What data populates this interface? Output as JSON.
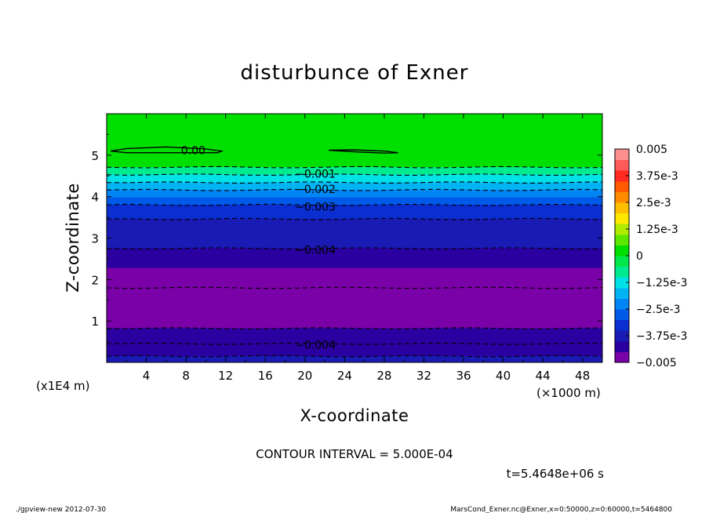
{
  "chart_data": {
    "type": "heatmap",
    "title": "disturbunce of Exner",
    "xlabel": "X-coordinate",
    "ylabel": "Z-coordinate",
    "x_unit": "(×1000 m)",
    "y_unit": "(x1E4 m)",
    "xlim": [
      0,
      50
    ],
    "ylim": [
      0,
      6
    ],
    "x_ticks": [
      4,
      8,
      12,
      16,
      20,
      24,
      28,
      32,
      36,
      40,
      44,
      48
    ],
    "y_ticks": [
      1,
      2,
      3,
      4,
      5
    ],
    "contour_interval_text": "CONTOUR INTERVAL = 5.000E-04",
    "time_text": "t=5.4648e+06 s",
    "colorbar": {
      "range": [
        -0.005,
        0.005
      ],
      "colors": [
        "#7a00a8",
        "#2a00a0",
        "#1a1ab4",
        "#0a2ed0",
        "#005ae8",
        "#0086f4",
        "#00b4f4",
        "#00e2e6",
        "#00ea90",
        "#00e84a",
        "#00e000",
        "#5ce600",
        "#b0ea00",
        "#ffe800",
        "#ffbe00",
        "#ff8c00",
        "#ff5a00",
        "#ff2a20",
        "#ff5a5a",
        "#ff9090"
      ],
      "tick_labels": [
        {
          "value": 0.005,
          "label": "0.005"
        },
        {
          "value": 0.00375,
          "label": "3.75e-3"
        },
        {
          "value": 0.0025,
          "label": "2.5e-3"
        },
        {
          "value": 0.00125,
          "label": "1.25e-3"
        },
        {
          "value": 0,
          "label": "0"
        },
        {
          "value": -0.00125,
          "label": "−1.25e-3"
        },
        {
          "value": -0.0025,
          "label": "−2.5e-3"
        },
        {
          "value": -0.00375,
          "label": "−3.75e-3"
        },
        {
          "value": -0.005,
          "label": "−0.005"
        }
      ]
    },
    "field_bands": [
      {
        "z0": 4.71,
        "z1": 6.0,
        "value": 0.0002
      },
      {
        "z0": 4.53,
        "z1": 4.71,
        "value": -0.0007
      },
      {
        "z0": 4.34,
        "z1": 4.53,
        "value": -0.0012
      },
      {
        "z0": 4.16,
        "z1": 4.34,
        "value": -0.0017
      },
      {
        "z0": 3.98,
        "z1": 4.16,
        "value": -0.0022
      },
      {
        "z0": 3.8,
        "z1": 3.98,
        "value": -0.0027
      },
      {
        "z0": 3.46,
        "z1": 3.8,
        "value": -0.0032
      },
      {
        "z0": 3.1,
        "z1": 3.46,
        "value": -0.0037
      },
      {
        "z0": 2.75,
        "z1": 3.1,
        "value": -0.004
      },
      {
        "z0": 2.28,
        "z1": 2.75,
        "value": -0.0043
      },
      {
        "z0": 1.8,
        "z1": 2.28,
        "value": -0.0046
      },
      {
        "z0": 1.43,
        "z1": 1.8,
        "value": -0.0048
      },
      {
        "z0": 1.23,
        "z1": 1.43,
        "value": -0.0049
      },
      {
        "z0": 1.05,
        "z1": 1.23,
        "value": -0.005
      },
      {
        "z0": 0.82,
        "z1": 1.05,
        "value": -0.0048
      },
      {
        "z0": 0.45,
        "z1": 0.82,
        "value": -0.0044
      },
      {
        "z0": 0.15,
        "z1": 0.45,
        "value": -0.0041
      },
      {
        "z0": 0.0,
        "z1": 0.15,
        "value": -0.0038
      }
    ],
    "contour_lines": [
      {
        "z": 4.71,
        "style": "dashed"
      },
      {
        "z": 4.53,
        "style": "dashed"
      },
      {
        "z": 4.34,
        "style": "dashed"
      },
      {
        "z": 4.16,
        "style": "dashed"
      },
      {
        "z": 3.8,
        "style": "dashed"
      },
      {
        "z": 3.46,
        "style": "dashed"
      },
      {
        "z": 2.75,
        "style": "dashed"
      },
      {
        "z": 1.8,
        "style": "dashed"
      },
      {
        "z": 0.82,
        "style": "dashed"
      },
      {
        "z": 0.45,
        "style": "dashed"
      },
      {
        "z": 0.15,
        "style": "dashed"
      }
    ],
    "contour_labels": [
      {
        "text": "0.00",
        "x": 7.5,
        "z": 5.12
      },
      {
        "text": "−0.001",
        "x": 19.0,
        "z": 4.55
      },
      {
        "text": "−0.002",
        "x": 19.0,
        "z": 4.18
      },
      {
        "text": "−0.003",
        "x": 19.0,
        "z": 3.76
      },
      {
        "text": "−0.004",
        "x": 19.0,
        "z": 2.72
      },
      {
        "text": "−0.004",
        "x": 19.0,
        "z": 0.43
      }
    ],
    "zero_contours": [
      {
        "x": [
          0.4,
          2,
          6,
          10,
          11.6,
          11.2,
          7,
          2,
          0.4
        ],
        "z": [
          5.1,
          5.16,
          5.2,
          5.15,
          5.1,
          5.06,
          5.06,
          5.06,
          5.1
        ]
      },
      {
        "x": [
          22.4,
          25,
          28,
          29.4,
          28,
          25,
          22.4
        ],
        "z": [
          5.12,
          5.13,
          5.1,
          5.06,
          5.05,
          5.08,
          5.12
        ]
      }
    ]
  },
  "footer": {
    "left": "./gpview-new  2012-07-30",
    "right": "MarsCond_Exner.nc@Exner,x=0:50000,z=0:60000,t=5464800"
  }
}
